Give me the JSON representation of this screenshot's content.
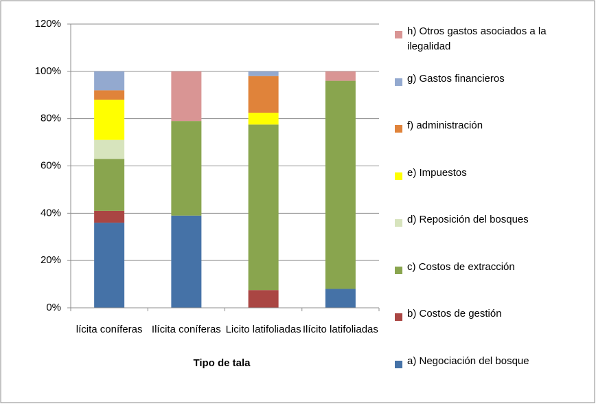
{
  "chart_data": {
    "type": "stacked_bar",
    "x_label": "Tipo de tala",
    "categories": [
      "lícita coníferas",
      "Ilícita coníferas",
      "Licito latifoliadas",
      "Ilícito latifoliadas"
    ],
    "series": [
      {
        "name": "a) Negociación del bosque",
        "color": "#4572a7",
        "values": [
          36,
          39,
          0,
          8
        ]
      },
      {
        "name": "b) Costos de gestión",
        "color": "#aa4643",
        "values": [
          5,
          0,
          7.5,
          0
        ]
      },
      {
        "name": "c) Costos de extracción",
        "color": "#89a54e",
        "values": [
          22,
          40,
          70,
          88
        ]
      },
      {
        "name": "d) Reposición del bosques",
        "color": "#d7e4bd",
        "values": [
          8,
          0,
          0,
          0
        ]
      },
      {
        "name": "e) Impuestos",
        "color": "#ffff00",
        "values": [
          17,
          0,
          5,
          0
        ]
      },
      {
        "name": "f) administración",
        "color": "#e0833a",
        "values": [
          4,
          0,
          15.5,
          0
        ]
      },
      {
        "name": "g) Gastos financieros",
        "color": "#93a9cf",
        "values": [
          8,
          0,
          2,
          0
        ]
      },
      {
        "name": "h) Otros gastos asociados a la ilegalidad",
        "color": "#d99594",
        "values": [
          0,
          21,
          0,
          4
        ]
      }
    ],
    "ylim": [
      0,
      120
    ],
    "yticks": [
      {
        "value": 0,
        "label": "0%"
      },
      {
        "value": 20,
        "label": "20%"
      },
      {
        "value": 40,
        "label": "40%"
      },
      {
        "value": 60,
        "label": "60%"
      },
      {
        "value": 80,
        "label": "80%"
      },
      {
        "value": 100,
        "label": "100%"
      },
      {
        "value": 120,
        "label": "120%"
      }
    ],
    "grid": true,
    "legend": "right"
  }
}
